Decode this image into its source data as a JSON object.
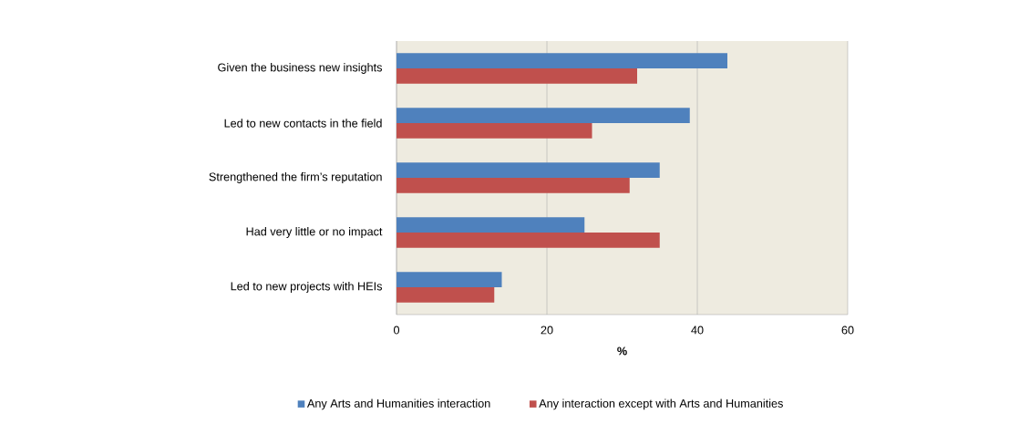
{
  "chart_data": {
    "type": "bar",
    "orientation": "horizontal",
    "xlabel": "%",
    "categories": [
      "Given the business new insights",
      "Led to new contacts in the field",
      "Strengthened the firm’s reputation",
      "Had very little or no impact",
      "Led to new projects with HEIs"
    ],
    "series": [
      {
        "name": "Any Arts and Humanities interaction",
        "color": "#4f81bd",
        "values": [
          44,
          39,
          35,
          25,
          14
        ]
      },
      {
        "name": "Any interaction except with Arts and Humanities",
        "color": "#c0504d",
        "values": [
          32,
          26,
          31,
          35,
          13
        ]
      }
    ],
    "xlim": [
      0,
      60
    ],
    "xticks": [
      0,
      20,
      40,
      60
    ],
    "grid": "x",
    "legend": "bottom"
  }
}
